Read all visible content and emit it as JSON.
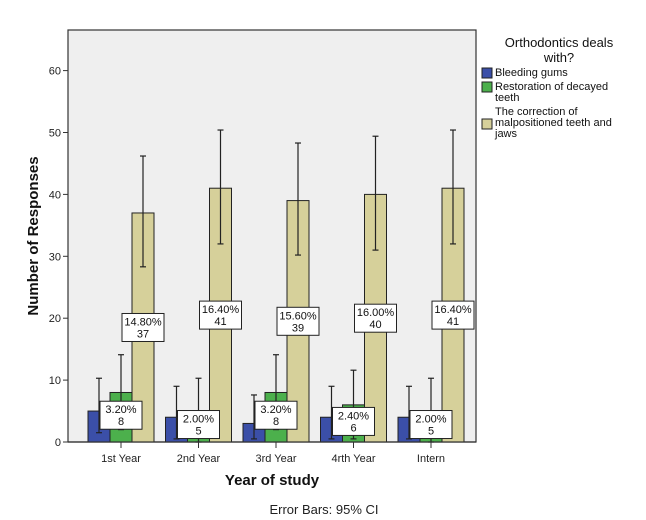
{
  "chart_data": {
    "type": "bar",
    "title": "",
    "xlabel": "Year of study",
    "ylabel": "Number of Responses",
    "ylim": [
      0,
      65
    ],
    "yticks": [
      0,
      10,
      20,
      30,
      40,
      50,
      60
    ],
    "grid": false,
    "categories": [
      "1st Year",
      "2nd Year",
      "3rd Year",
      "4rth Year",
      "Intern"
    ],
    "legend": {
      "title": "Orthodontics deals with?",
      "placement": "right",
      "title_lines": [
        "Orthodontics deals",
        "with?"
      ]
    },
    "series": [
      {
        "name": "Bleeding gums",
        "name_lines": [
          "Bleeding gums"
        ],
        "color": "#3b4fa8",
        "values": [
          5,
          4,
          3,
          4,
          4
        ],
        "ci_low": [
          1.5,
          0.5,
          0.5,
          0.5,
          0.5
        ],
        "ci_high": [
          10.3,
          9,
          7.6,
          9,
          9
        ]
      },
      {
        "name": "Restoration of decayed teeth",
        "name_lines": [
          "Restoration of decayed",
          "teeth"
        ],
        "color": "#4cb04c",
        "values": [
          8,
          5,
          8,
          6,
          5
        ],
        "ci_low": [
          2,
          0,
          2,
          0.5,
          0
        ],
        "ci_high": [
          14.1,
          10.3,
          14.1,
          11.6,
          10.3
        ],
        "data_labels": [
          {
            "percent": "3.20%",
            "count": "8"
          },
          {
            "percent": "2.00%",
            "count": "5"
          },
          {
            "percent": "3.20%",
            "count": "8"
          },
          {
            "percent": "2.40%",
            "count": "6"
          },
          {
            "percent": "2.00%",
            "count": "5"
          }
        ]
      },
      {
        "name": "The correction of malpositioned teeth and jaws",
        "name_lines": [
          "The correction of",
          "malpositioned teeth and",
          "jaws"
        ],
        "color": "#d6d09a",
        "values": [
          37,
          41,
          39,
          40,
          41
        ],
        "ci_low": [
          28.3,
          32,
          30.2,
          31,
          32
        ],
        "ci_high": [
          46.2,
          50.4,
          48.3,
          49.4,
          50.4
        ],
        "data_labels": [
          {
            "percent": "14.80%",
            "count": "37"
          },
          {
            "percent": "16.40%",
            "count": "41"
          },
          {
            "percent": "15.60%",
            "count": "39"
          },
          {
            "percent": "16.00%",
            "count": "40"
          },
          {
            "percent": "16.40%",
            "count": "41"
          }
        ]
      }
    ],
    "footnote": "Error Bars: 95% CI"
  }
}
